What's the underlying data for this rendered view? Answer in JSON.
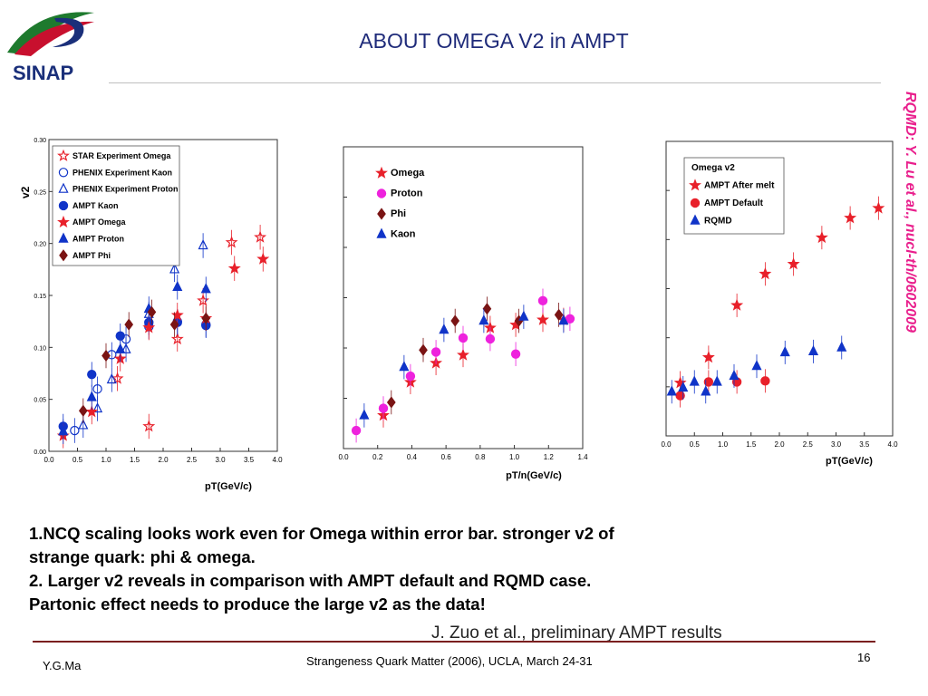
{
  "header": {
    "logo_text": "SINAP",
    "title": "ABOUT OMEGA V2 in AMPT",
    "side_note": "RQMD: Y. Lu et al., nucl-th/0602009"
  },
  "body_lines": [
    "1.NCQ scaling looks work even for Omega within error bar. stronger v2 of",
    "strange quark: phi & omega.",
    "2. Larger v2 reveals in comparison with AMPT default and RQMD case.",
    "Partonic effect needs to produce the large v2 as the data!"
  ],
  "credit": "J. Zuo et al., preliminary AMPT results",
  "footer": {
    "author": "Y.G.Ma",
    "conference": "Strangeness Quark Matter (2006),  UCLA, March 24-31",
    "page": "16"
  },
  "colors": {
    "title": "#1f2b7a",
    "red": "#e8202a",
    "blue": "#1034c8",
    "magenta": "#ee22dd",
    "dark_red": "#7a1414",
    "rule": "#7a1f1f"
  },
  "chart_data": [
    {
      "type": "scatter",
      "xlabel": "pT(GeV/c)",
      "ylabel": "v2",
      "xlim": [
        0,
        4
      ],
      "ylim": [
        0,
        0.3
      ],
      "xticks": [
        "0.0",
        "0.5",
        "1.0",
        "1.5",
        "2.0",
        "2.5",
        "3.0",
        "3.5",
        "4.0"
      ],
      "yticks": [
        "0.00",
        "0.05",
        "0.10",
        "0.15",
        "0.20",
        "0.25",
        "0.30"
      ],
      "legend_position": "top-left",
      "series": [
        {
          "name": "STAR Experiment Omega",
          "marker": "star-open",
          "color": "#e8202a",
          "points": [
            [
              1.2,
              0.07
            ],
            [
              1.75,
              0.024
            ],
            [
              2.25,
              0.108
            ],
            [
              2.7,
              0.145
            ],
            [
              3.2,
              0.201
            ],
            [
              3.7,
              0.206
            ]
          ]
        },
        {
          "name": "PHENIX Experiment Kaon",
          "marker": "circle-open",
          "color": "#1034c8",
          "points": [
            [
              0.45,
              0.02
            ],
            [
              0.85,
              0.06
            ],
            [
              1.1,
              0.093
            ],
            [
              1.35,
              0.108
            ],
            [
              1.75,
              0.12
            ],
            [
              2.25,
              0.125
            ],
            [
              2.75,
              0.122
            ]
          ]
        },
        {
          "name": "PHENIX Experiment Proton",
          "marker": "triangle-open",
          "color": "#1034c8",
          "points": [
            [
              0.6,
              0.025
            ],
            [
              0.85,
              0.041
            ],
            [
              1.1,
              0.069
            ],
            [
              1.35,
              0.098
            ],
            [
              1.75,
              0.132
            ],
            [
              2.2,
              0.175
            ],
            [
              2.7,
              0.198
            ]
          ]
        },
        {
          "name": "AMPT Kaon",
          "marker": "circle",
          "color": "#1034c8",
          "points": [
            [
              0.25,
              0.024
            ],
            [
              0.75,
              0.074
            ],
            [
              1.25,
              0.111
            ],
            [
              1.75,
              0.124
            ],
            [
              2.25,
              0.124
            ],
            [
              2.75,
              0.121
            ]
          ]
        },
        {
          "name": "AMPT Omega",
          "marker": "star",
          "color": "#e8202a",
          "points": [
            [
              0.25,
              0.015
            ],
            [
              0.75,
              0.038
            ],
            [
              1.25,
              0.089
            ],
            [
              1.75,
              0.119
            ],
            [
              2.25,
              0.131
            ],
            [
              2.75,
              0.128
            ],
            [
              3.25,
              0.176
            ],
            [
              3.75,
              0.185
            ]
          ]
        },
        {
          "name": "AMPT Proton",
          "marker": "triangle",
          "color": "#1034c8",
          "points": [
            [
              0.25,
              0.019
            ],
            [
              0.75,
              0.052
            ],
            [
              1.25,
              0.098
            ],
            [
              1.75,
              0.137
            ],
            [
              2.25,
              0.158
            ],
            [
              2.75,
              0.156
            ]
          ]
        },
        {
          "name": "AMPT Phi",
          "marker": "diamond",
          "color": "#7a1414",
          "points": [
            [
              0.6,
              0.039
            ],
            [
              1.0,
              0.092
            ],
            [
              1.4,
              0.122
            ],
            [
              1.8,
              0.134
            ],
            [
              2.2,
              0.122
            ],
            [
              2.75,
              0.128
            ]
          ]
        }
      ]
    },
    {
      "type": "scatter",
      "xlabel": "pT/n(GeV/c)",
      "xlim": [
        0,
        1.5
      ],
      "ylim": [
        0,
        0.3
      ],
      "xticks": [
        "0.0",
        "0.2",
        "0.4",
        "0.6",
        "0.8",
        "1.0",
        "1.2",
        "1.4"
      ],
      "legend_position": "top-left",
      "series": [
        {
          "name": "Omega",
          "marker": "star",
          "color": "#e8202a",
          "points": [
            [
              0.25,
              0.033
            ],
            [
              0.42,
              0.066
            ],
            [
              0.58,
              0.085
            ],
            [
              0.75,
              0.093
            ],
            [
              0.92,
              0.12
            ],
            [
              1.08,
              0.123
            ],
            [
              1.25,
              0.128
            ],
            [
              1.38,
              0.128
            ]
          ]
        },
        {
          "name": "Proton",
          "marker": "circle",
          "color": "#ee22dd",
          "points": [
            [
              0.08,
              0.018
            ],
            [
              0.25,
              0.04
            ],
            [
              0.42,
              0.072
            ],
            [
              0.58,
              0.096
            ],
            [
              0.75,
              0.11
            ],
            [
              0.92,
              0.109
            ],
            [
              1.08,
              0.094
            ],
            [
              1.25,
              0.147
            ],
            [
              1.42,
              0.129
            ]
          ]
        },
        {
          "name": "Phi",
          "marker": "diamond",
          "color": "#7a1414",
          "points": [
            [
              0.3,
              0.046
            ],
            [
              0.5,
              0.098
            ],
            [
              0.7,
              0.127
            ],
            [
              0.9,
              0.139
            ],
            [
              1.1,
              0.127
            ],
            [
              1.35,
              0.133
            ]
          ]
        },
        {
          "name": "Kaon",
          "marker": "triangle",
          "color": "#1034c8",
          "points": [
            [
              0.13,
              0.033
            ],
            [
              0.38,
              0.081
            ],
            [
              0.63,
              0.118
            ],
            [
              0.88,
              0.127
            ],
            [
              1.13,
              0.131
            ],
            [
              1.38,
              0.127
            ]
          ]
        }
      ]
    },
    {
      "type": "scatter",
      "title": "Omega v2",
      "xlabel": "pT(GeV/c)",
      "xlim": [
        0,
        4
      ],
      "ylim": [
        0,
        0.3
      ],
      "xticks": [
        "0.0",
        "0.5",
        "1.0",
        "1.5",
        "2.0",
        "2.5",
        "3.0",
        "3.5",
        "4.0"
      ],
      "legend_position": "top-left",
      "series": [
        {
          "name": "AMPT After melt",
          "marker": "star",
          "color": "#e8202a",
          "points": [
            [
              0.25,
              0.054
            ],
            [
              0.75,
              0.08
            ],
            [
              1.25,
              0.133
            ],
            [
              1.75,
              0.165
            ],
            [
              2.25,
              0.175
            ],
            [
              2.75,
              0.202
            ],
            [
              3.25,
              0.222
            ],
            [
              3.75,
              0.232
            ]
          ]
        },
        {
          "name": "AMPT Default",
          "marker": "circle",
          "color": "#e8202a",
          "points": [
            [
              0.25,
              0.041
            ],
            [
              0.75,
              0.055
            ],
            [
              1.25,
              0.055
            ],
            [
              1.75,
              0.056
            ]
          ]
        },
        {
          "name": "RQMD",
          "marker": "triangle",
          "color": "#1034c8",
          "points": [
            [
              0.1,
              0.045
            ],
            [
              0.3,
              0.049
            ],
            [
              0.5,
              0.055
            ],
            [
              0.7,
              0.045
            ],
            [
              0.9,
              0.055
            ],
            [
              1.2,
              0.061
            ],
            [
              1.6,
              0.071
            ],
            [
              2.1,
              0.085
            ],
            [
              2.6,
              0.086
            ],
            [
              3.1,
              0.09
            ]
          ]
        }
      ]
    }
  ]
}
